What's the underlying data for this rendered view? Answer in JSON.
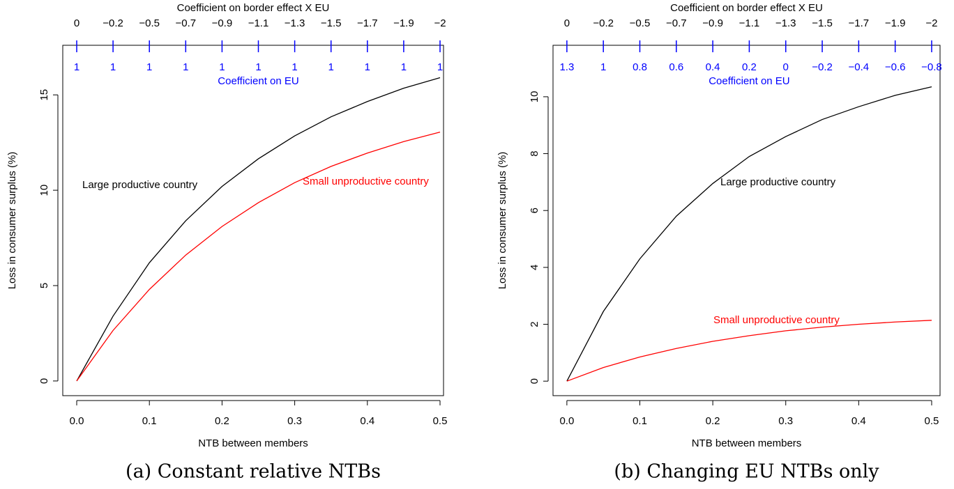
{
  "chart_data": [
    {
      "type": "line",
      "top_axis_label": "Coefficient on border effect X EU",
      "top_ticks": [
        "0",
        "−0.2",
        "−0.5",
        "−0.7",
        "−0.9",
        "−1.1",
        "−1.3",
        "−1.5",
        "−1.7",
        "−1.9",
        "−2"
      ],
      "eu_label": "Coefficient on EU",
      "eu_ticks": [
        "1",
        "1",
        "1",
        "1",
        "1",
        "1",
        "1",
        "1",
        "1",
        "1",
        "1"
      ],
      "eu_color": "#0000ff",
      "xlabel": "NTB between members",
      "ylabel": "Loss in consumer surplus (%)",
      "caption": "(a) Constant relative NTBs",
      "x": [
        0,
        0.05,
        0.1,
        0.15,
        0.2,
        0.25,
        0.3,
        0.35,
        0.4,
        0.45,
        0.5
      ],
      "series": [
        {
          "name": "Large productive country",
          "color": "#000000",
          "values": [
            0,
            3.4,
            6.2,
            8.4,
            10.2,
            11.65,
            12.85,
            13.85,
            14.65,
            15.35,
            15.9
          ]
        },
        {
          "name": "Small unproductive country",
          "color": "#ff0000",
          "values": [
            0,
            2.65,
            4.8,
            6.6,
            8.1,
            9.35,
            10.4,
            11.25,
            11.95,
            12.55,
            13.05
          ]
        }
      ],
      "xlim": [
        -0.0192,
        0.5048
      ],
      "ylim": [
        -0.77,
        17.6
      ],
      "xticks": [
        {
          "value": 0,
          "label": "0.0"
        },
        0.1,
        0.2,
        0.3,
        0.4,
        0.5
      ],
      "yticks": [
        0,
        5,
        10,
        15
      ]
    },
    {
      "type": "line",
      "top_axis_label": "Coefficient on border effect X EU",
      "top_ticks": [
        "0",
        "−0.2",
        "−0.5",
        "−0.7",
        "−0.9",
        "−1.1",
        "−1.3",
        "−1.5",
        "−1.7",
        "−1.9",
        "−2"
      ],
      "eu_label": "Coefficient on EU",
      "eu_ticks": [
        "1.3",
        "1",
        "0.8",
        "0.6",
        "0.4",
        "0.2",
        "0",
        "−0.2",
        "−0.4",
        "−0.6",
        "−0.8"
      ],
      "eu_color": "#0000ff",
      "xlabel": "NTB between members",
      "ylabel": "Loss in consumer surplus (%)",
      "caption": "(b) Changing EU NTBs only",
      "x": [
        0,
        0.05,
        0.1,
        0.15,
        0.2,
        0.25,
        0.3,
        0.35,
        0.4,
        0.45,
        0.5
      ],
      "series": [
        {
          "name": "Large productive country",
          "color": "#000000",
          "values": [
            0,
            2.45,
            4.3,
            5.8,
            6.95,
            7.9,
            8.6,
            9.2,
            9.65,
            10.05,
            10.35
          ]
        },
        {
          "name": "Small unproductive country",
          "color": "#ff0000",
          "values": [
            0,
            0.48,
            0.85,
            1.15,
            1.4,
            1.6,
            1.77,
            1.9,
            2.0,
            2.08,
            2.14
          ]
        }
      ],
      "xlim": [
        -0.019,
        0.5115
      ],
      "ylim": [
        -0.51,
        11.81
      ],
      "xticks": [
        {
          "value": 0,
          "label": "0.0"
        },
        0.1,
        0.2,
        0.3,
        0.4,
        0.5
      ],
      "yticks": [
        0,
        2,
        4,
        6,
        8,
        10
      ]
    }
  ]
}
